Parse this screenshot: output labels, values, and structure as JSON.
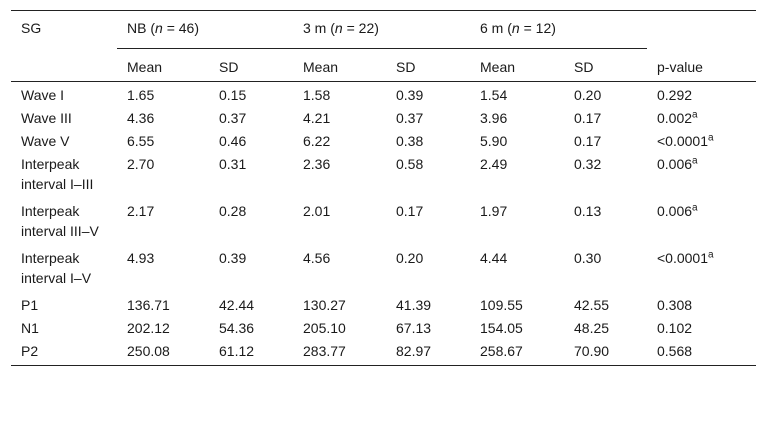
{
  "table": {
    "header": {
      "sg": "SG",
      "groups": [
        {
          "label": "NB",
          "n_label": "n",
          "n_value": "= 46"
        },
        {
          "label": "3 m",
          "n_label": "n",
          "n_value": "= 22"
        },
        {
          "label": "6 m",
          "n_label": "n",
          "n_value": "= 12"
        }
      ],
      "mean": "Mean",
      "sd": "SD",
      "pvalue": "p-value"
    },
    "rows": [
      {
        "label": "Wave I",
        "c1": "1.65",
        "c2": "0.15",
        "c3": "1.58",
        "c4": "0.39",
        "c5": "1.54",
        "c6": "0.20",
        "p": "0.292",
        "sup": ""
      },
      {
        "label": "Wave III",
        "c1": "4.36",
        "c2": "0.37",
        "c3": "4.21",
        "c4": "0.37",
        "c5": "3.96",
        "c6": "0.17",
        "p": "0.002",
        "sup": "a"
      },
      {
        "label": "Wave V",
        "c1": "6.55",
        "c2": "0.46",
        "c3": "6.22",
        "c4": "0.38",
        "c5": "5.90",
        "c6": "0.17",
        "p": "<0.0001",
        "sup": "a"
      },
      {
        "label": "Interpeak interval I–III",
        "c1": "2.70",
        "c2": "0.31",
        "c3": "2.36",
        "c4": "0.58",
        "c5": "2.49",
        "c6": "0.32",
        "p": "0.006",
        "sup": "a"
      },
      {
        "label": "Interpeak interval III–V",
        "c1": "2.17",
        "c2": "0.28",
        "c3": "2.01",
        "c4": "0.17",
        "c5": "1.97",
        "c6": "0.13",
        "p": "0.006",
        "sup": "a"
      },
      {
        "label": "Interpeak interval I–V",
        "c1": "4.93",
        "c2": "0.39",
        "c3": "4.56",
        "c4": "0.20",
        "c5": "4.44",
        "c6": "0.30",
        "p": "<0.0001",
        "sup": "a"
      },
      {
        "label": "P1",
        "c1": "136.71",
        "c2": "42.44",
        "c3": "130.27",
        "c4": "41.39",
        "c5": "109.55",
        "c6": "42.55",
        "p": "0.308",
        "sup": ""
      },
      {
        "label": "N1",
        "c1": "202.12",
        "c2": "54.36",
        "c3": "205.10",
        "c4": "67.13",
        "c5": "154.05",
        "c6": "48.25",
        "p": "0.102",
        "sup": ""
      },
      {
        "label": "P2",
        "c1": "250.08",
        "c2": "61.12",
        "c3": "283.77",
        "c4": "82.97",
        "c5": "258.67",
        "c6": "70.90",
        "p": "0.568",
        "sup": ""
      }
    ]
  }
}
